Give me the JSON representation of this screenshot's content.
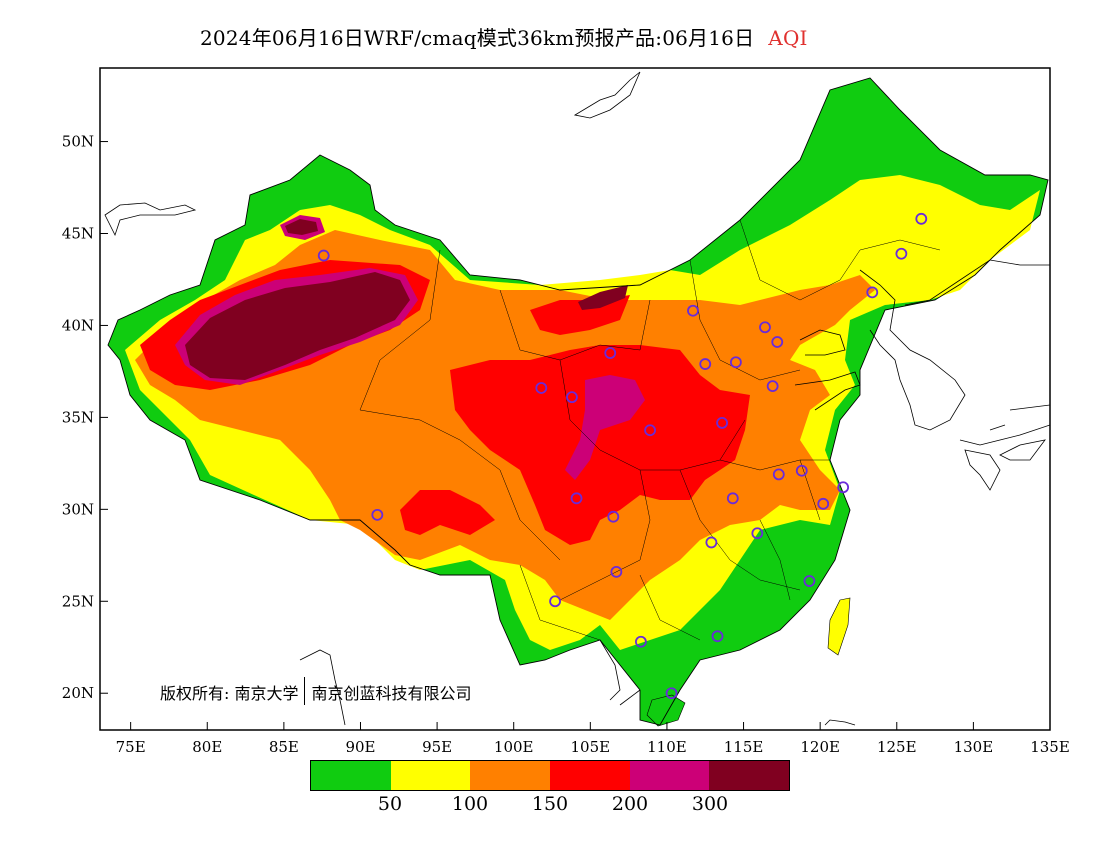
{
  "title": {
    "main": "2024年06月16日WRF/cmaq模式36km预报产品:06月16日",
    "highlight": "AQI"
  },
  "axes": {
    "lat_labels": [
      "20N",
      "25N",
      "30N",
      "35N",
      "40N",
      "45N",
      "50N"
    ],
    "lon_labels": [
      "75E",
      "80E",
      "85E",
      "90E",
      "95E",
      "100E",
      "105E",
      "110E",
      "115E",
      "120E",
      "125E",
      "130E",
      "135E"
    ],
    "lat_range": [
      18,
      54
    ],
    "lon_range": [
      73,
      135
    ]
  },
  "copyright": {
    "left": "版权所有: 南京大学",
    "right": "南京创蓝科技有限公司"
  },
  "legend": {
    "colors": [
      "#10cc10",
      "#ffff00",
      "#ff8000",
      "#ff0000",
      "#cc0077",
      "#800020"
    ],
    "labels": [
      "50",
      "100",
      "150",
      "200",
      "300"
    ]
  },
  "stations": [
    [
      87.6,
      43.8
    ],
    [
      101.8,
      36.6
    ],
    [
      103.8,
      36.1
    ],
    [
      106.3,
      38.5
    ],
    [
      111.7,
      40.8
    ],
    [
      112.5,
      37.9
    ],
    [
      114.5,
      38.0
    ],
    [
      116.4,
      39.9
    ],
    [
      117.2,
      39.1
    ],
    [
      116.9,
      36.7
    ],
    [
      113.6,
      34.7
    ],
    [
      108.9,
      34.3
    ],
    [
      104.1,
      30.6
    ],
    [
      106.5,
      29.6
    ],
    [
      106.7,
      26.6
    ],
    [
      102.7,
      25.0
    ],
    [
      108.3,
      22.8
    ],
    [
      110.3,
      20.0
    ],
    [
      113.3,
      23.1
    ],
    [
      112.9,
      28.2
    ],
    [
      114.3,
      30.6
    ],
    [
      117.3,
      31.9
    ],
    [
      118.8,
      32.1
    ],
    [
      120.2,
      30.3
    ],
    [
      121.5,
      31.2
    ],
    [
      119.3,
      26.1
    ],
    [
      115.9,
      28.7
    ],
    [
      126.6,
      45.8
    ],
    [
      125.3,
      43.9
    ],
    [
      123.4,
      41.8
    ],
    [
      91.1,
      29.7
    ]
  ]
}
